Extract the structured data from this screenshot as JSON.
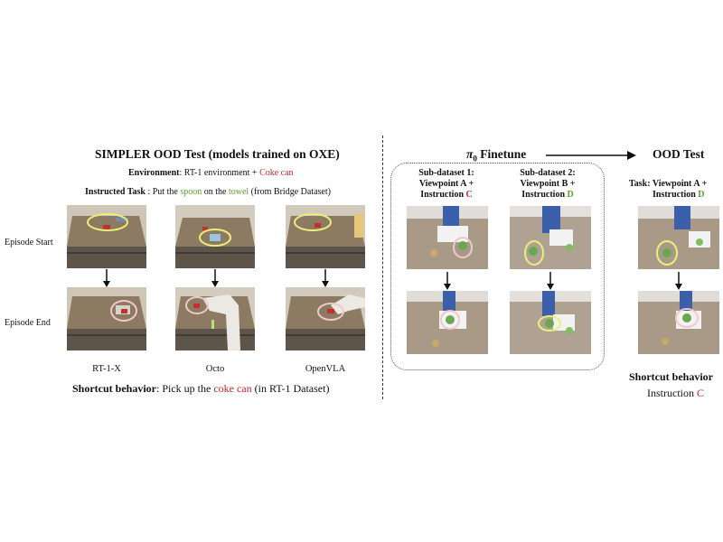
{
  "left": {
    "title": "SIMPLER OOD Test (models trained on OXE)",
    "env_label": "Environment",
    "env_sep": ": ",
    "env_text": "RT-1 environment + ",
    "env_highlight": "Coke can",
    "task_label": "Instructed Task",
    "task_text_1": " : Put the ",
    "task_spoon": "spoon",
    "task_text_2": " on the ",
    "task_towel": "towel",
    "task_text_3": " (from Bridge Dataset)",
    "row_start": "Episode Start",
    "row_end": "Episode End",
    "models": [
      "RT-1-X",
      "Octo",
      "OpenVLA"
    ],
    "shortcut_label": "Shortcut behavior",
    "shortcut_text_1": ": Pick up the ",
    "shortcut_highlight": "coke can",
    "shortcut_text_2": " (in RT-1 Dataset)"
  },
  "right": {
    "finetune_label": "π",
    "finetune_sub": "0",
    "finetune_text": " Finetune",
    "ood_title": "OOD Test",
    "sub1_line1": "Sub-dataset 1:",
    "sub1_line2": "Viewpoint A +",
    "sub1_line3": "Instruction ",
    "sub1_letter": "C",
    "sub2_line1": "Sub-dataset 2:",
    "sub2_line2": "Viewpoint B +",
    "sub2_line3": "Instruction ",
    "sub2_letter": "D",
    "task_line1": "Task: Viewpoint A +",
    "task_line2": "Instruction ",
    "task_letter": "D",
    "shortcut_label": "Shortcut behavior",
    "shortcut_line2": "Instruction ",
    "shortcut_letter": "C"
  },
  "colors": {
    "red": "#c0282b",
    "green": "#5aa02c",
    "highlight_yellow": "#e8f07a",
    "highlight_pink": "#f0c8cc"
  }
}
